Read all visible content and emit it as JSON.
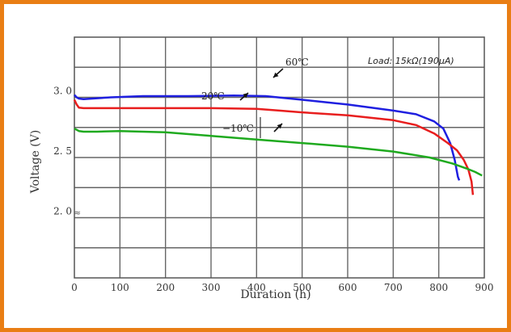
{
  "chart_data": {
    "type": "line",
    "title": "",
    "xlabel": "Duration (h)",
    "ylabel": "Voltage (V)",
    "annotation": "Load: 15kΩ(190μA)",
    "xlim": [
      0,
      900
    ],
    "ylim": [
      1.5,
      3.5
    ],
    "grid": true,
    "x_ticks": [
      0,
      100,
      200,
      300,
      400,
      500,
      600,
      700,
      800,
      900
    ],
    "y_ticks": [
      {
        "value": 3.0,
        "label": "3. 0"
      },
      {
        "value": 2.5,
        "label": "2. 5"
      },
      {
        "value": 2.0,
        "label": "2. 0"
      }
    ],
    "series": [
      {
        "name": "60℃",
        "color": "#1F1FE0",
        "points": [
          [
            0,
            3.02
          ],
          [
            5,
            3.0
          ],
          [
            10,
            2.99
          ],
          [
            20,
            2.985
          ],
          [
            40,
            2.99
          ],
          [
            80,
            3.0
          ],
          [
            150,
            3.01
          ],
          [
            250,
            3.01
          ],
          [
            350,
            3.015
          ],
          [
            420,
            3.01
          ],
          [
            500,
            2.98
          ],
          [
            600,
            2.94
          ],
          [
            700,
            2.89
          ],
          [
            750,
            2.86
          ],
          [
            790,
            2.8
          ],
          [
            810,
            2.74
          ],
          [
            825,
            2.62
          ],
          [
            835,
            2.48
          ],
          [
            842,
            2.34
          ],
          [
            845,
            2.31
          ]
        ]
      },
      {
        "name": "20℃",
        "color": "#E81E1E",
        "points": [
          [
            0,
            2.98
          ],
          [
            5,
            2.94
          ],
          [
            10,
            2.915
          ],
          [
            20,
            2.91
          ],
          [
            100,
            2.91
          ],
          [
            200,
            2.91
          ],
          [
            300,
            2.91
          ],
          [
            400,
            2.905
          ],
          [
            450,
            2.89
          ],
          [
            500,
            2.875
          ],
          [
            600,
            2.85
          ],
          [
            700,
            2.81
          ],
          [
            750,
            2.77
          ],
          [
            790,
            2.7
          ],
          [
            820,
            2.62
          ],
          [
            840,
            2.56
          ],
          [
            855,
            2.48
          ],
          [
            865,
            2.4
          ],
          [
            872,
            2.3
          ],
          [
            875,
            2.19
          ]
        ]
      },
      {
        "name": "−10℃",
        "color": "#1FAA1F",
        "points": [
          [
            0,
            2.74
          ],
          [
            10,
            2.72
          ],
          [
            20,
            2.715
          ],
          [
            50,
            2.715
          ],
          [
            100,
            2.72
          ],
          [
            200,
            2.71
          ],
          [
            300,
            2.68
          ],
          [
            400,
            2.65
          ],
          [
            500,
            2.62
          ],
          [
            600,
            2.59
          ],
          [
            700,
            2.55
          ],
          [
            780,
            2.5
          ],
          [
            830,
            2.45
          ],
          [
            860,
            2.41
          ],
          [
            880,
            2.38
          ],
          [
            895,
            2.35
          ]
        ]
      }
    ]
  }
}
